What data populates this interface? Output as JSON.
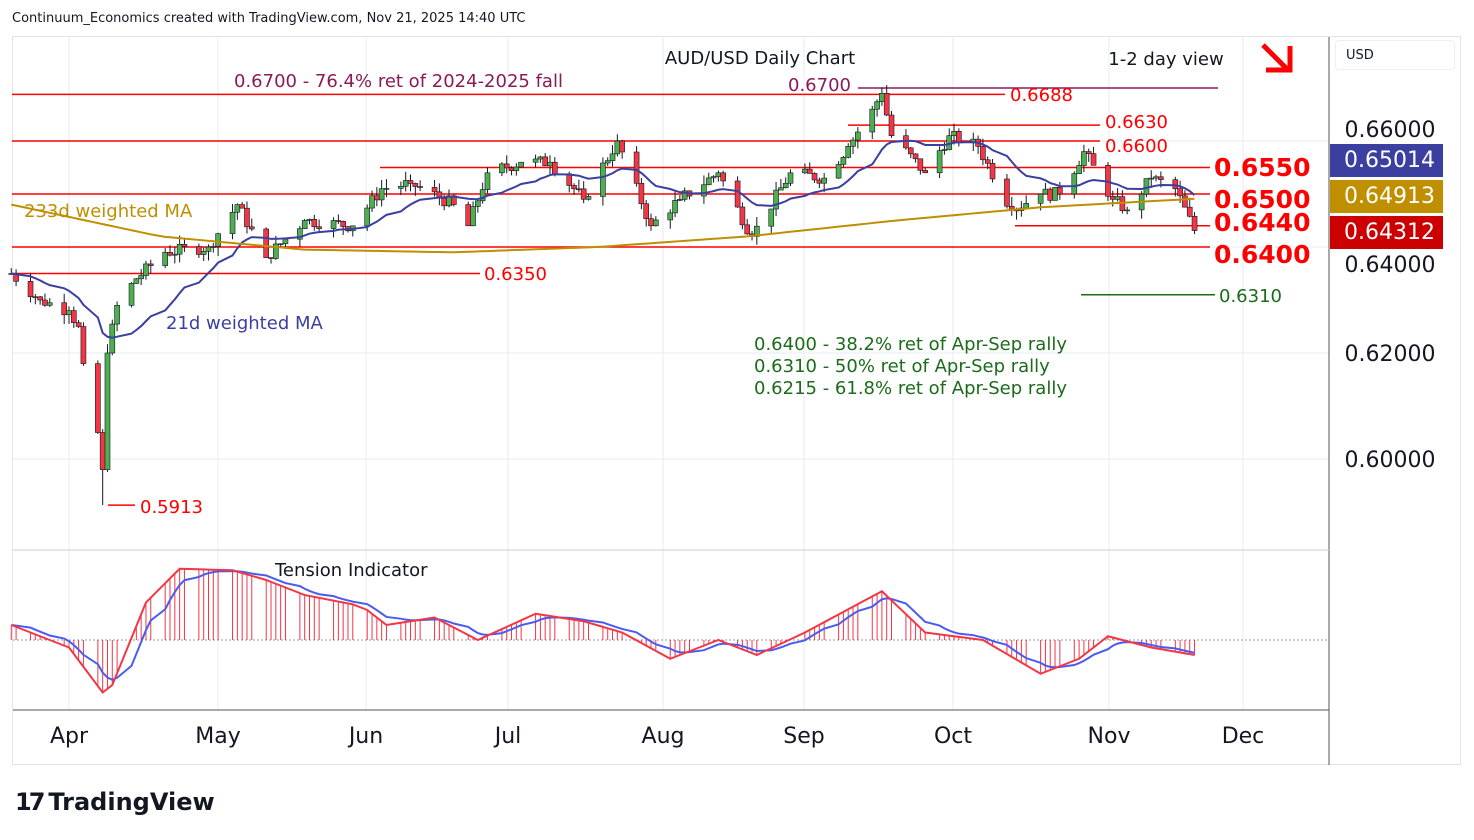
{
  "header": "Continuum_Economics created with TradingView.com, Nov 21, 2025 14:40 UTC",
  "logo_text": "TradingView",
  "currency": "USD",
  "badges": {
    "wma21": "0.65014",
    "ma233": "0.64913",
    "last": "0.64312"
  },
  "colors": {
    "up": "#4caf50",
    "down": "#f23645",
    "wma": "#3a3fa0",
    "ma233": "#bf8f00",
    "red": "#ff0000",
    "purple": "#8b1a5a",
    "green": "#1b6b1b"
  },
  "chart_data": {
    "type": "candlestick",
    "title": "AUD/USD Daily Chart",
    "view": "1-2 day view",
    "ylim": [
      0.586,
      0.6755
    ],
    "y_ticks": [
      "0.66000",
      "0.64000",
      "0.62000",
      "0.60000"
    ],
    "x_ticks": [
      "Apr",
      "May",
      "Jun",
      "Jul",
      "Aug",
      "Sep",
      "Oct",
      "Nov",
      "Dec"
    ],
    "close_waypoints": [
      [
        "2025-03-20",
        0.635
      ],
      [
        "2025-03-26",
        0.63
      ],
      [
        "2025-04-01",
        0.628
      ],
      [
        "2025-04-03",
        0.625
      ],
      [
        "2025-04-04",
        0.618
      ],
      [
        "2025-04-07",
        0.605
      ],
      [
        "2025-04-08",
        0.598
      ],
      [
        "2025-04-09",
        0.62
      ],
      [
        "2025-04-11",
        0.629
      ],
      [
        "2025-04-15",
        0.634
      ],
      [
        "2025-04-21",
        0.639
      ],
      [
        "2025-04-30",
        0.64
      ],
      [
        "2025-05-06",
        0.648
      ],
      [
        "2025-05-12",
        0.638
      ],
      [
        "2025-05-20",
        0.645
      ],
      [
        "2025-05-30",
        0.644
      ],
      [
        "2025-06-05",
        0.651
      ],
      [
        "2025-06-11",
        0.652
      ],
      [
        "2025-06-20",
        0.648
      ],
      [
        "2025-06-23",
        0.644
      ],
      [
        "2025-06-27",
        0.654
      ],
      [
        "2025-07-04",
        0.656
      ],
      [
        "2025-07-10",
        0.656
      ],
      [
        "2025-07-17",
        0.649
      ],
      [
        "2025-07-24",
        0.66
      ],
      [
        "2025-07-31",
        0.644
      ],
      [
        "2025-08-06",
        0.649
      ],
      [
        "2025-08-14",
        0.654
      ],
      [
        "2025-08-21",
        0.642
      ],
      [
        "2025-08-29",
        0.654
      ],
      [
        "2025-09-05",
        0.653
      ],
      [
        "2025-09-10",
        0.659
      ],
      [
        "2025-09-15",
        0.666
      ],
      [
        "2025-09-17",
        0.669
      ],
      [
        "2025-09-19",
        0.661
      ],
      [
        "2025-09-26",
        0.654
      ],
      [
        "2025-10-01",
        0.661
      ],
      [
        "2025-10-07",
        0.659
      ],
      [
        "2025-10-14",
        0.647
      ],
      [
        "2025-10-20",
        0.65
      ],
      [
        "2025-10-24",
        0.65
      ],
      [
        "2025-10-29",
        0.658
      ],
      [
        "2025-11-04",
        0.649
      ],
      [
        "2025-11-07",
        0.647
      ],
      [
        "2025-11-12",
        0.653
      ],
      [
        "2025-11-17",
        0.651
      ],
      [
        "2025-11-21",
        0.6431
      ]
    ],
    "ma233_waypoints": [
      [
        "2025-03-20",
        0.648
      ],
      [
        "2025-04-20",
        0.642
      ],
      [
        "2025-05-20",
        0.6395
      ],
      [
        "2025-06-20",
        0.639
      ],
      [
        "2025-07-20",
        0.64
      ],
      [
        "2025-08-20",
        0.642
      ],
      [
        "2025-09-20",
        0.645
      ],
      [
        "2025-10-20",
        0.6475
      ],
      [
        "2025-11-21",
        0.6491
      ]
    ],
    "tension_indicator": {
      "label": "Tension Indicator",
      "waypoints": [
        [
          "2025-03-20",
          0.2
        ],
        [
          "2025-04-01",
          -0.1
        ],
        [
          "2025-04-08",
          -0.7
        ],
        [
          "2025-04-10",
          -0.6
        ],
        [
          "2025-04-17",
          0.5
        ],
        [
          "2025-04-24",
          0.95
        ],
        [
          "2025-05-05",
          0.93
        ],
        [
          "2025-05-12",
          0.8
        ],
        [
          "2025-05-20",
          0.6
        ],
        [
          "2025-06-01",
          0.45
        ],
        [
          "2025-06-06",
          0.2
        ],
        [
          "2025-06-16",
          0.3
        ],
        [
          "2025-06-25",
          0.0
        ],
        [
          "2025-07-07",
          0.35
        ],
        [
          "2025-07-17",
          0.25
        ],
        [
          "2025-07-25",
          0.1
        ],
        [
          "2025-08-04",
          -0.25
        ],
        [
          "2025-08-14",
          0.0
        ],
        [
          "2025-08-22",
          -0.2
        ],
        [
          "2025-09-01",
          0.1
        ],
        [
          "2025-09-17",
          0.65
        ],
        [
          "2025-09-26",
          0.1
        ],
        [
          "2025-10-08",
          0.0
        ],
        [
          "2025-10-20",
          -0.45
        ],
        [
          "2025-10-28",
          -0.25
        ],
        [
          "2025-11-03",
          0.05
        ],
        [
          "2025-11-12",
          -0.1
        ],
        [
          "2025-11-21",
          -0.2
        ]
      ]
    },
    "levels": [
      {
        "label": "0.6700",
        "price": 0.67,
        "color": "purple"
      },
      {
        "label": "0.6688",
        "price": 0.6688,
        "color": "red"
      },
      {
        "label": "0.6630",
        "price": 0.663,
        "color": "red"
      },
      {
        "label": "0.6600",
        "price": 0.66,
        "color": "red"
      },
      {
        "label": "0.6550",
        "price": 0.655,
        "color": "red"
      },
      {
        "label": "0.6500",
        "price": 0.65,
        "color": "red"
      },
      {
        "label": "0.6440",
        "price": 0.644,
        "color": "red"
      },
      {
        "label": "0.6400",
        "price": 0.64,
        "color": "red"
      },
      {
        "label": "0.6350",
        "price": 0.635,
        "color": "red"
      },
      {
        "label": "0.6310",
        "price": 0.631,
        "color": "green"
      },
      {
        "label": "0.5913",
        "price": 0.5913,
        "color": "red"
      }
    ],
    "annotations": {
      "fib_top": "0.6700 - 76.4% ret of 2024-2025 fall",
      "ma233_label": "233d weighted MA",
      "wma21_label": "21d weighted MA",
      "ret1": "0.6400 - 38.2% ret of Apr-Sep rally",
      "ret2": "0.6310 - 50% ret of Apr-Sep rally",
      "ret3": "0.6215 - 61.8% ret of Apr-Sep rally"
    }
  }
}
